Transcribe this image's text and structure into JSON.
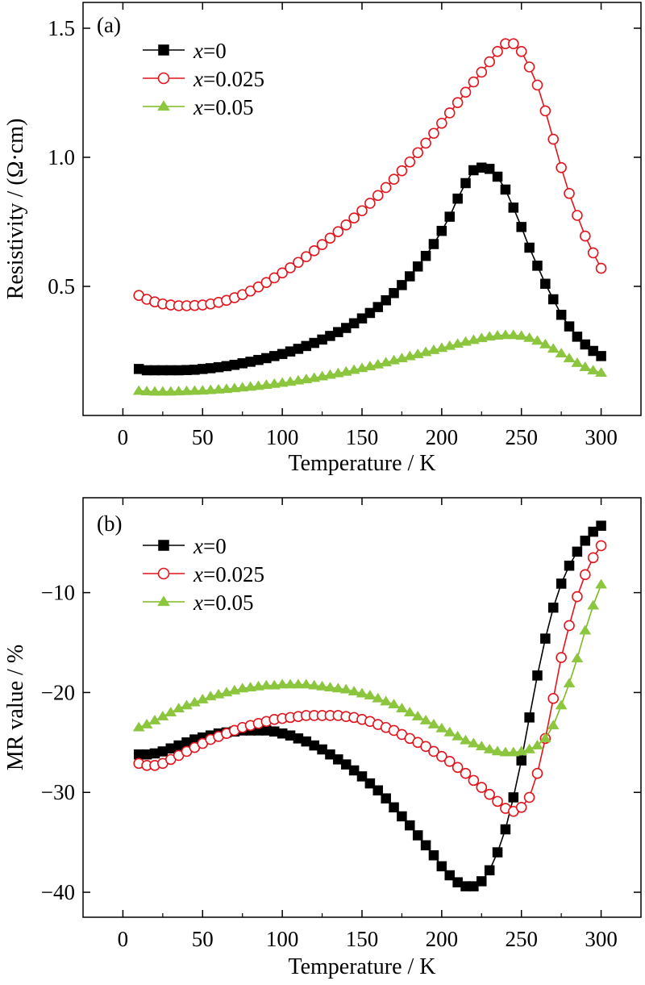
{
  "chart_data": [
    {
      "type": "line",
      "panel_label": "(a)",
      "xlabel": "Temperature / K",
      "ylabel": "Resistivity / (Ω·cm)",
      "xlim": [
        -25,
        325
      ],
      "ylim": [
        0.0,
        1.6
      ],
      "xticks": [
        0,
        50,
        100,
        150,
        200,
        250,
        300
      ],
      "xtick_labels": [
        "0",
        "50",
        "100",
        "150",
        "200",
        "250",
        "300"
      ],
      "yticks": [
        0.5,
        1.0,
        1.5
      ],
      "ytick_labels": [
        "0.5",
        "1.0",
        "1.5"
      ],
      "legend_position": "top-left",
      "series": [
        {
          "name": "x=0",
          "legend_var": "x",
          "legend_rest": "=0",
          "marker": "square",
          "filled": true,
          "color": "#000000",
          "marker_color": "#000000",
          "x": [
            10,
            15,
            20,
            25,
            30,
            35,
            40,
            45,
            50,
            55,
            60,
            65,
            70,
            75,
            80,
            85,
            90,
            95,
            100,
            105,
            110,
            115,
            120,
            125,
            130,
            135,
            140,
            145,
            150,
            155,
            160,
            165,
            170,
            175,
            180,
            185,
            190,
            195,
            200,
            205,
            210,
            215,
            220,
            225,
            230,
            235,
            240,
            245,
            250,
            255,
            260,
            265,
            270,
            275,
            280,
            285,
            290,
            295,
            300
          ],
          "y": [
            0.18,
            0.175,
            0.175,
            0.175,
            0.175,
            0.175,
            0.176,
            0.177,
            0.18,
            0.183,
            0.187,
            0.191,
            0.196,
            0.202,
            0.208,
            0.215,
            0.222,
            0.23,
            0.238,
            0.248,
            0.258,
            0.269,
            0.281,
            0.294,
            0.308,
            0.323,
            0.339,
            0.357,
            0.376,
            0.397,
            0.42,
            0.446,
            0.474,
            0.505,
            0.539,
            0.577,
            0.618,
            0.664,
            0.715,
            0.77,
            0.84,
            0.9,
            0.95,
            0.96,
            0.955,
            0.925,
            0.875,
            0.805,
            0.73,
            0.65,
            0.58,
            0.51,
            0.45,
            0.39,
            0.345,
            0.305,
            0.275,
            0.25,
            0.23
          ]
        },
        {
          "name": "x=0.025",
          "legend_var": "x",
          "legend_rest": "=0.025",
          "marker": "circle",
          "filled": false,
          "color": "#e2141c",
          "marker_color": "#e2141c",
          "x": [
            10,
            15,
            20,
            25,
            30,
            35,
            40,
            45,
            50,
            55,
            60,
            65,
            70,
            75,
            80,
            85,
            90,
            95,
            100,
            105,
            110,
            115,
            120,
            125,
            130,
            135,
            140,
            145,
            150,
            155,
            160,
            165,
            170,
            175,
            180,
            185,
            190,
            195,
            200,
            205,
            210,
            215,
            220,
            225,
            230,
            235,
            240,
            245,
            250,
            255,
            260,
            265,
            270,
            275,
            280,
            285,
            290,
            295,
            300
          ],
          "y": [
            0.465,
            0.45,
            0.44,
            0.432,
            0.428,
            0.425,
            0.425,
            0.426,
            0.428,
            0.432,
            0.438,
            0.446,
            0.456,
            0.468,
            0.482,
            0.498,
            0.515,
            0.533,
            0.552,
            0.572,
            0.593,
            0.615,
            0.638,
            0.662,
            0.687,
            0.712,
            0.738,
            0.765,
            0.793,
            0.822,
            0.852,
            0.883,
            0.915,
            0.948,
            0.982,
            1.018,
            1.055,
            1.093,
            1.132,
            1.172,
            1.212,
            1.252,
            1.292,
            1.33,
            1.37,
            1.41,
            1.44,
            1.44,
            1.41,
            1.35,
            1.28,
            1.18,
            1.07,
            0.96,
            0.86,
            0.775,
            0.695,
            0.63,
            0.57
          ]
        },
        {
          "name": "x=0.05",
          "legend_var": "x",
          "legend_rest": "=0.05",
          "marker": "triangle",
          "filled": true,
          "color": "#7dba1e",
          "marker_color": "#8cc63f",
          "x": [
            10,
            15,
            20,
            25,
            30,
            35,
            40,
            45,
            50,
            55,
            60,
            65,
            70,
            75,
            80,
            85,
            90,
            95,
            100,
            105,
            110,
            115,
            120,
            125,
            130,
            135,
            140,
            145,
            150,
            155,
            160,
            165,
            170,
            175,
            180,
            185,
            190,
            195,
            200,
            205,
            210,
            215,
            220,
            225,
            230,
            235,
            240,
            245,
            250,
            255,
            260,
            265,
            270,
            275,
            280,
            285,
            290,
            295,
            300
          ],
          "y": [
            0.095,
            0.093,
            0.092,
            0.092,
            0.092,
            0.093,
            0.094,
            0.095,
            0.096,
            0.098,
            0.1,
            0.102,
            0.105,
            0.108,
            0.111,
            0.114,
            0.118,
            0.122,
            0.126,
            0.13,
            0.135,
            0.14,
            0.145,
            0.151,
            0.157,
            0.163,
            0.169,
            0.176,
            0.183,
            0.19,
            0.197,
            0.205,
            0.213,
            0.221,
            0.229,
            0.237,
            0.245,
            0.253,
            0.261,
            0.269,
            0.277,
            0.285,
            0.292,
            0.299,
            0.305,
            0.309,
            0.311,
            0.311,
            0.308,
            0.3,
            0.289,
            0.275,
            0.258,
            0.24,
            0.221,
            0.203,
            0.187,
            0.174,
            0.165
          ]
        }
      ]
    },
    {
      "type": "line",
      "panel_label": "(b)",
      "xlabel": "Temperature / K",
      "ylabel": "MR value  / %",
      "xlim": [
        -25,
        325
      ],
      "ylim": [
        -42.5,
        -0.5
      ],
      "xticks": [
        0,
        50,
        100,
        150,
        200,
        250,
        300
      ],
      "xtick_labels": [
        "0",
        "50",
        "100",
        "150",
        "200",
        "250",
        "300"
      ],
      "yticks": [
        -40,
        -30,
        -20,
        -10
      ],
      "ytick_labels": [
        "−40",
        "−30",
        "−20",
        "−10"
      ],
      "legend_position": "top-left",
      "series": [
        {
          "name": "x=0",
          "legend_var": "x",
          "legend_rest": "=0",
          "marker": "square",
          "filled": true,
          "color": "#000000",
          "marker_color": "#000000",
          "x": [
            10,
            15,
            20,
            25,
            30,
            35,
            40,
            45,
            50,
            55,
            60,
            65,
            70,
            75,
            80,
            85,
            90,
            95,
            100,
            105,
            110,
            115,
            120,
            125,
            130,
            135,
            140,
            145,
            150,
            155,
            160,
            165,
            170,
            175,
            180,
            185,
            190,
            195,
            200,
            205,
            210,
            215,
            220,
            225,
            230,
            235,
            240,
            245,
            250,
            255,
            260,
            265,
            270,
            275,
            280,
            285,
            290,
            295,
            300
          ],
          "y": [
            -26.2,
            -26.2,
            -26.1,
            -25.9,
            -25.6,
            -25.3,
            -25.0,
            -24.7,
            -24.5,
            -24.3,
            -24.1,
            -24.0,
            -23.9,
            -23.8,
            -23.8,
            -23.8,
            -23.8,
            -23.9,
            -24.1,
            -24.3,
            -24.6,
            -24.9,
            -25.3,
            -25.7,
            -26.2,
            -26.7,
            -27.2,
            -27.8,
            -28.4,
            -29.1,
            -29.8,
            -30.6,
            -31.5,
            -32.4,
            -33.3,
            -34.3,
            -35.3,
            -36.3,
            -37.4,
            -38.3,
            -39.0,
            -39.4,
            -39.4,
            -38.9,
            -37.8,
            -36.0,
            -33.7,
            -30.5,
            -26.8,
            -22.5,
            -18.3,
            -14.6,
            -11.5,
            -9.1,
            -7.3,
            -5.9,
            -4.8,
            -3.9,
            -3.3
          ]
        },
        {
          "name": "x=0.025",
          "legend_var": "x",
          "legend_rest": "=0.025",
          "marker": "circle",
          "filled": false,
          "color": "#e2141c",
          "marker_color": "#e2141c",
          "x": [
            10,
            15,
            20,
            25,
            30,
            35,
            40,
            45,
            50,
            55,
            60,
            65,
            70,
            75,
            80,
            85,
            90,
            95,
            100,
            105,
            110,
            115,
            120,
            125,
            130,
            135,
            140,
            145,
            150,
            155,
            160,
            165,
            170,
            175,
            180,
            185,
            190,
            195,
            200,
            205,
            210,
            215,
            220,
            225,
            230,
            235,
            240,
            245,
            250,
            255,
            260,
            265,
            270,
            275,
            280,
            285,
            290,
            295,
            300
          ],
          "y": [
            -27.1,
            -27.3,
            -27.3,
            -27.1,
            -26.7,
            -26.3,
            -25.9,
            -25.5,
            -25.1,
            -24.7,
            -24.4,
            -24.1,
            -23.8,
            -23.5,
            -23.3,
            -23.1,
            -22.9,
            -22.7,
            -22.6,
            -22.5,
            -22.4,
            -22.3,
            -22.3,
            -22.3,
            -22.3,
            -22.3,
            -22.4,
            -22.5,
            -22.7,
            -22.9,
            -23.2,
            -23.5,
            -23.8,
            -24.2,
            -24.6,
            -25.0,
            -25.4,
            -25.9,
            -26.4,
            -26.9,
            -27.5,
            -28.1,
            -28.8,
            -29.5,
            -30.2,
            -30.9,
            -31.6,
            -31.9,
            -31.5,
            -30.5,
            -28.1,
            -24.6,
            -20.6,
            -16.5,
            -13.3,
            -10.4,
            -8.2,
            -6.5,
            -5.3
          ]
        },
        {
          "name": "x=0.05",
          "legend_var": "x",
          "legend_rest": "=0.05",
          "marker": "triangle",
          "filled": true,
          "color": "#7dba1e",
          "marker_color": "#8cc63f",
          "x": [
            10,
            15,
            20,
            25,
            30,
            35,
            40,
            45,
            50,
            55,
            60,
            65,
            70,
            75,
            80,
            85,
            90,
            95,
            100,
            105,
            110,
            115,
            120,
            125,
            130,
            135,
            140,
            145,
            150,
            155,
            160,
            165,
            170,
            175,
            180,
            185,
            190,
            195,
            200,
            205,
            210,
            215,
            220,
            225,
            230,
            235,
            240,
            245,
            250,
            255,
            260,
            265,
            270,
            275,
            280,
            285,
            290,
            295,
            300
          ],
          "y": [
            -23.5,
            -23.2,
            -22.8,
            -22.4,
            -22.0,
            -21.6,
            -21.3,
            -21.0,
            -20.7,
            -20.4,
            -20.2,
            -20.0,
            -19.8,
            -19.6,
            -19.5,
            -19.4,
            -19.3,
            -19.3,
            -19.2,
            -19.2,
            -19.2,
            -19.2,
            -19.3,
            -19.4,
            -19.5,
            -19.6,
            -19.7,
            -19.9,
            -20.1,
            -20.3,
            -20.6,
            -20.9,
            -21.2,
            -21.6,
            -22.0,
            -22.4,
            -22.8,
            -23.2,
            -23.6,
            -24.0,
            -24.4,
            -24.8,
            -25.1,
            -25.4,
            -25.7,
            -25.9,
            -26.0,
            -26.0,
            -25.9,
            -25.7,
            -25.3,
            -24.6,
            -23.3,
            -21.3,
            -19.1,
            -16.6,
            -13.8,
            -11.3,
            -9.2
          ]
        }
      ]
    }
  ]
}
